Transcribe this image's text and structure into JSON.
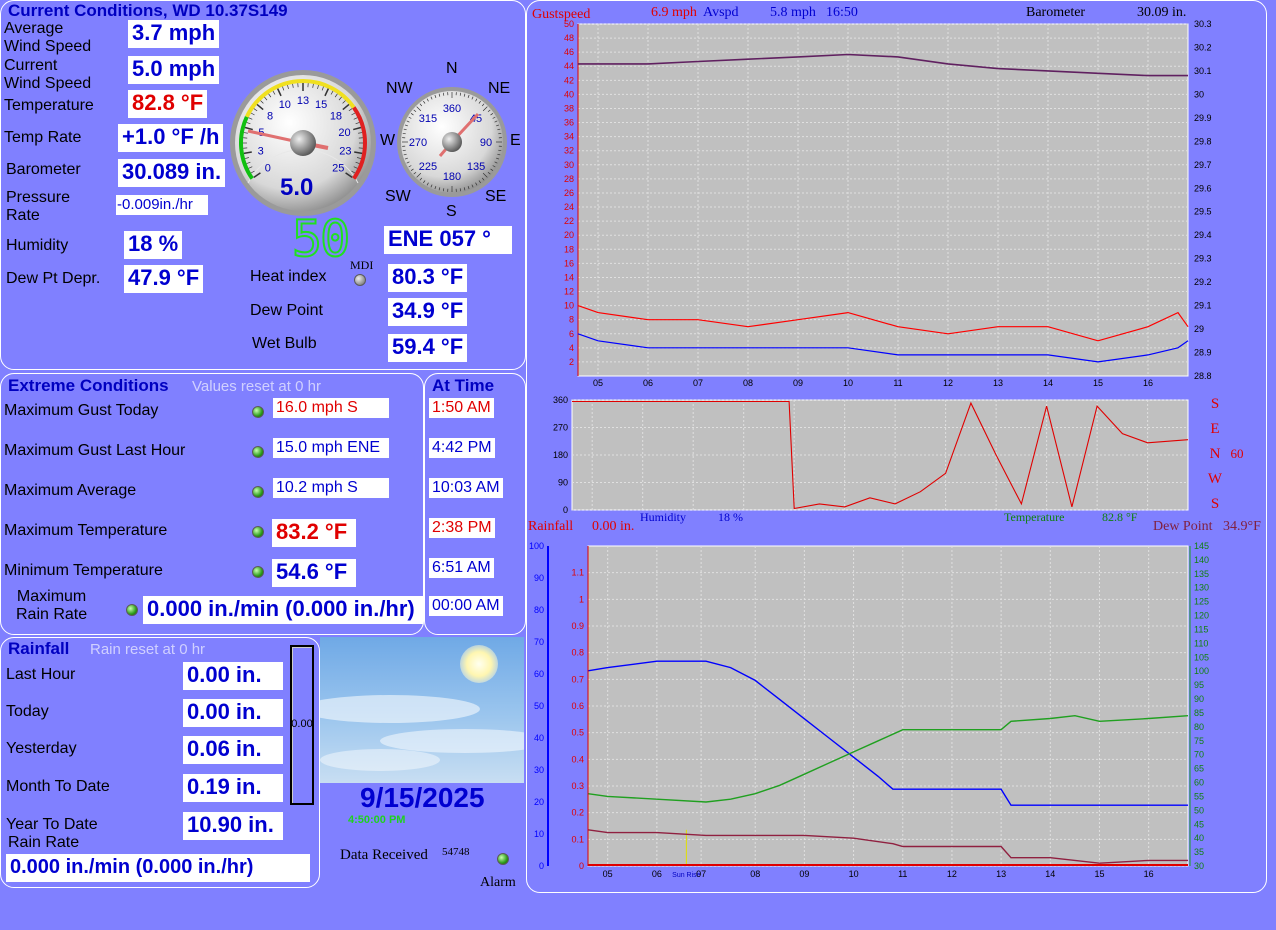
{
  "current": {
    "title": "Current Conditions, WD 10.37S149",
    "rows": [
      {
        "label": "Average\nWind Speed",
        "value": "3.7 mph"
      },
      {
        "label": "Current\nWind Speed",
        "value": "5.0 mph"
      },
      {
        "label": "Temperature",
        "value": "82.8 °F"
      },
      {
        "label": "Temp Rate",
        "value": "+1.0 °F /h"
      },
      {
        "label": "Barometer",
        "value": "30.089 in."
      },
      {
        "label": "Pressure\nRate",
        "value": "-0.009in./hr"
      },
      {
        "label": "Humidity",
        "value": "18 %"
      },
      {
        "label": "Dew Pt Depr.",
        "value": "47.9 °F"
      }
    ],
    "speed_gauge": {
      "value": "5.0",
      "ticks": [
        "0",
        "3",
        "5",
        "8",
        "10",
        "13",
        "15",
        "18",
        "20",
        "23",
        "25"
      ]
    },
    "compass": {
      "dirs": [
        "N",
        "NE",
        "E",
        "SE",
        "S",
        "SW",
        "W",
        "NW"
      ],
      "ticks": [
        "360",
        "45",
        "90",
        "135",
        "180",
        "225",
        "270",
        "315"
      ],
      "direction": "ENE  057 °"
    },
    "digital": "50",
    "mdi_label": "MDI",
    "derived": [
      {
        "label": "Heat index",
        "value": "80.3 °F"
      },
      {
        "label": "Dew Point",
        "value": "34.9 °F"
      },
      {
        "label": "Wet Bulb",
        "value": "59.4 °F"
      }
    ]
  },
  "extreme": {
    "title": "Extreme Conditions",
    "note": "Values reset at 0 hr",
    "at_time_title": "At Time",
    "rows": [
      {
        "label": "Maximum Gust Today",
        "value": "16.0 mph   S",
        "time": "1:50 AM",
        "time_red": true
      },
      {
        "label": "Maximum Gust Last Hour",
        "value": "15.0 mph ENE",
        "time": "4:42 PM",
        "time_red": false
      },
      {
        "label": "Maximum Average",
        "value": "10.2 mph   S",
        "time": "10:03 AM",
        "time_red": false
      },
      {
        "label": "Maximum Temperature",
        "value": "83.2 °F",
        "time": "2:38 PM",
        "time_red": true
      },
      {
        "label": "Minimum Temperature",
        "value": "54.6 °F",
        "time": "6:51 AM",
        "time_red": false
      },
      {
        "label": "Maximum\nRain Rate",
        "value": "0.000 in./min (0.000 in./hr)",
        "time": "00:00 AM",
        "time_red": false
      }
    ]
  },
  "rainfall": {
    "title": "Rainfall",
    "note": "Rain reset at 0 hr",
    "rows": [
      {
        "label": "Last Hour",
        "value": "0.00 in."
      },
      {
        "label": "Today",
        "value": "0.00 in."
      },
      {
        "label": "Yesterday",
        "value": "0.06 in."
      },
      {
        "label": "Month To Date",
        "value": "0.19 in."
      },
      {
        "label": "Year To Date",
        "value": "10.90 in."
      }
    ],
    "rate_label": "Rain Rate",
    "rate_value": "0.000 in./min (0.000 in./hr)",
    "gauge_value": "0.00"
  },
  "status": {
    "date": "9/15/2025",
    "time": "4:50:00 PM",
    "data_received_label": "Data Received",
    "data_received_count": "54748",
    "alarm_label": "Alarm"
  },
  "colors": {
    "background": "#8080ff",
    "gust": "#ff0000",
    "avg": "#0000ff",
    "baro": "#602060",
    "temp": "#20a020",
    "hum": "#0000ff",
    "dew": "#902040"
  },
  "chart_data": [
    {
      "type": "line",
      "header": {
        "gust_label": "Gustspeed",
        "gust_value": "6.9 mph",
        "avg_label": "Avspd",
        "avg_value": "5.8 mph",
        "time": "16:50",
        "baro_label": "Barometer",
        "baro_value": "30.09 in."
      },
      "x_ticks": [
        "05",
        "06",
        "07",
        "08",
        "09",
        "10",
        "11",
        "12",
        "13",
        "14",
        "15",
        "16"
      ],
      "left_axis": {
        "ylim": [
          0,
          50
        ],
        "ticks": [
          2,
          4,
          6,
          8,
          10,
          12,
          14,
          16,
          18,
          20,
          22,
          24,
          26,
          28,
          30,
          32,
          34,
          36,
          38,
          40,
          42,
          44,
          46,
          48,
          50
        ]
      },
      "right_axis": {
        "ylim": [
          28.8,
          30.3
        ],
        "ticks": [
          "28.8",
          "28.9",
          "29",
          "29.1",
          "29.2",
          "29.3",
          "29.4",
          "29.5",
          "29.6",
          "29.7",
          "29.8",
          "29.9",
          "30",
          "30.1",
          "30.2",
          "30.3"
        ]
      },
      "series": [
        {
          "key": "gust",
          "x": [
            4.6,
            5,
            6,
            7,
            8,
            9,
            10,
            11,
            12,
            13,
            14,
            15,
            16,
            16.6,
            16.8
          ],
          "y": [
            10,
            9,
            8,
            8,
            7,
            8,
            9,
            7,
            6,
            7,
            7,
            5,
            7,
            9,
            7
          ]
        },
        {
          "key": "avg",
          "x": [
            4.6,
            5,
            6,
            7,
            8,
            9,
            10,
            11,
            12,
            13,
            14,
            15,
            16,
            16.6,
            16.8
          ],
          "y": [
            6,
            5,
            4,
            4,
            4,
            4,
            4,
            3,
            3,
            3,
            3,
            2,
            3,
            4,
            5
          ]
        },
        {
          "key": "baro",
          "x": [
            4.6,
            6,
            7,
            8,
            9,
            10,
            11,
            12,
            13,
            14,
            15,
            16,
            16.8
          ],
          "y": [
            30.13,
            30.13,
            30.14,
            30.15,
            30.16,
            30.17,
            30.16,
            30.13,
            30.11,
            30.1,
            30.09,
            30.08,
            30.08
          ]
        }
      ]
    },
    {
      "type": "line",
      "x_ticks": [
        "05",
        "06",
        "07",
        "08",
        "09",
        "10",
        "11",
        "12",
        "13",
        "14",
        "15",
        "16"
      ],
      "left_axis": {
        "ylim": [
          0,
          360
        ],
        "ticks": [
          0,
          90,
          180,
          270,
          360
        ]
      },
      "right_labels": [
        "S",
        "E",
        "N",
        "W",
        "S"
      ],
      "right_value": "60",
      "series": [
        {
          "key": "dir",
          "x": [
            4.6,
            6,
            7,
            8,
            8.9,
            9,
            9.5,
            10,
            10.5,
            11,
            11.5,
            12,
            12.5,
            13,
            13.5,
            14,
            14.5,
            15,
            15.5,
            16,
            16.8
          ],
          "y": [
            355,
            355,
            355,
            355,
            355,
            5,
            20,
            10,
            40,
            20,
            60,
            120,
            350,
            180,
            20,
            340,
            10,
            340,
            250,
            220,
            230
          ]
        }
      ]
    },
    {
      "type": "line",
      "header": {
        "rain_label": "Rainfall",
        "rain_value": "0.00 in.",
        "hum_label": "Humidity",
        "hum_value": "18 %",
        "temp_label": "Temperature",
        "temp_value": "82.8 °F",
        "dew_label": "Dew Point",
        "dew_value": "34.9°F"
      },
      "x_ticks": [
        "05",
        "06",
        "Sun Rise",
        "07",
        "08",
        "09",
        "10",
        "11",
        "12",
        "13",
        "14",
        "15",
        "16"
      ],
      "hum_axis": {
        "ylim": [
          0,
          100
        ],
        "ticks": [
          0,
          10,
          20,
          30,
          40,
          50,
          60,
          70,
          80,
          90,
          100
        ]
      },
      "rain_axis": {
        "ylim": [
          0,
          1.2
        ],
        "ticks": [
          "0",
          "0.1",
          "0.2",
          "0.3",
          "0.4",
          "0.5",
          "0.6",
          "0.7",
          "0.8",
          "0.9",
          "1",
          "1.1"
        ]
      },
      "temp_axis": {
        "ylim": [
          30,
          145
        ],
        "ticks": [
          30,
          35,
          40,
          45,
          50,
          55,
          60,
          65,
          70,
          75,
          80,
          85,
          90,
          95,
          100,
          105,
          110,
          115,
          120,
          125,
          130,
          135,
          140,
          145
        ]
      },
      "series": [
        {
          "key": "hum",
          "x": [
            4.6,
            5,
            6,
            7,
            7.5,
            8,
            8.5,
            9,
            9.5,
            10,
            10.5,
            10.8,
            11,
            12,
            13,
            13.2,
            14,
            15,
            16,
            16.8
          ],
          "y": [
            61,
            62,
            64,
            64,
            62,
            58,
            52,
            46,
            40,
            34,
            28,
            24,
            24,
            24,
            24,
            19,
            19,
            19,
            19,
            19
          ]
        },
        {
          "key": "temp",
          "x": [
            4.6,
            5,
            6,
            7,
            7.5,
            8,
            8.5,
            9,
            9.5,
            10,
            10.5,
            11,
            12,
            13,
            13.2,
            14,
            14.5,
            15,
            16,
            16.8
          ],
          "y": [
            56,
            55,
            54,
            53,
            54,
            56,
            59,
            63,
            67,
            71,
            75,
            79,
            79,
            79,
            82,
            83,
            84,
            82,
            83,
            84
          ]
        },
        {
          "key": "dew",
          "x": [
            4.6,
            5,
            6,
            7,
            8,
            9,
            10,
            10.8,
            11,
            12,
            13,
            13.2,
            14,
            15,
            16,
            16.8
          ],
          "y": [
            43,
            42,
            42,
            41,
            41,
            41,
            40,
            38,
            37,
            37,
            37,
            33,
            33,
            31,
            32,
            32
          ]
        }
      ]
    }
  ]
}
